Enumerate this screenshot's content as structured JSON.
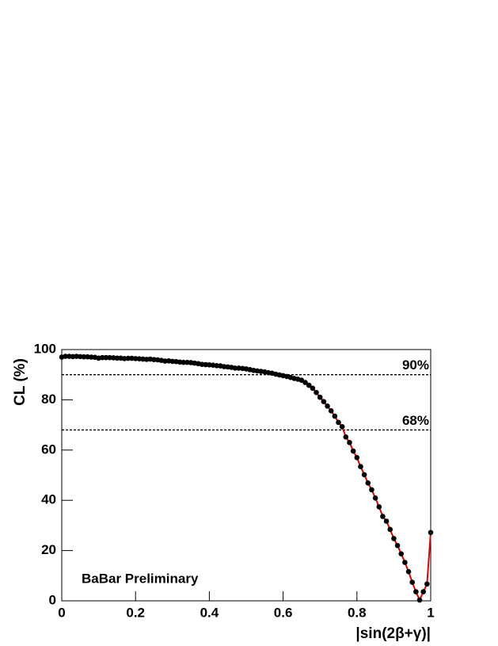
{
  "chart_data": {
    "type": "scatter",
    "x_label": "|sin(2β+γ)|",
    "y_label": "CL (%)",
    "annotation": "BaBar Preliminary",
    "color": "#000000",
    "line": true,
    "line_color": "#e00000",
    "x": [
      0,
      0.01,
      0.02,
      0.03,
      0.04,
      0.05,
      0.06,
      0.07,
      0.08,
      0.09,
      0.1,
      0.11,
      0.12,
      0.13,
      0.14,
      0.15,
      0.16,
      0.17,
      0.18,
      0.19,
      0.2,
      0.21,
      0.22,
      0.23,
      0.24,
      0.25,
      0.26,
      0.27,
      0.28,
      0.29,
      0.3,
      0.31,
      0.32,
      0.33,
      0.34,
      0.35,
      0.36,
      0.37,
      0.38,
      0.39,
      0.4,
      0.41,
      0.42,
      0.43,
      0.44,
      0.45,
      0.46,
      0.47,
      0.48,
      0.49,
      0.5,
      0.51,
      0.52,
      0.53,
      0.54,
      0.55,
      0.56,
      0.57,
      0.58,
      0.59,
      0.6,
      0.61,
      0.62,
      0.63,
      0.64,
      0.65,
      0.66,
      0.67,
      0.68,
      0.69,
      0.7,
      0.71,
      0.72,
      0.73,
      0.74,
      0.75,
      0.76,
      0.77,
      0.78,
      0.79,
      0.8,
      0.81,
      0.82,
      0.83,
      0.84,
      0.85,
      0.86,
      0.87,
      0.88,
      0.89,
      0.9,
      0.91,
      0.92,
      0.93,
      0.94,
      0.95,
      0.96,
      0.97,
      0.98,
      0.99,
      1
    ],
    "values": [
      97.0,
      97.3,
      97.3,
      97.2,
      97.3,
      97.2,
      97.1,
      97.1,
      97.0,
      96.9,
      96.6,
      96.8,
      96.8,
      96.8,
      96.7,
      96.6,
      96.6,
      96.4,
      96.5,
      96.5,
      96.4,
      96.3,
      96.2,
      96.1,
      96.2,
      96.0,
      95.9,
      95.7,
      95.4,
      95.5,
      95.3,
      95.2,
      95.0,
      94.9,
      94.9,
      94.8,
      94.6,
      94.4,
      94.1,
      94.0,
      93.9,
      93.8,
      93.6,
      93.5,
      93.2,
      93.1,
      92.9,
      92.6,
      92.6,
      92.5,
      92.3,
      92.0,
      91.7,
      91.5,
      91.3,
      91.1,
      90.8,
      90.6,
      90.2,
      89.9,
      89.6,
      89.3,
      88.9,
      88.5,
      88.2,
      87.8,
      86.9,
      85.8,
      84.6,
      82.9,
      81.0,
      79.3,
      77.5,
      75.6,
      73.5,
      71.0,
      69.3,
      65.2,
      63.0,
      59.6,
      57.0,
      53.4,
      50.2,
      46.9,
      44.2,
      40.9,
      37.4,
      33.6,
      31.7,
      28.4,
      24.8,
      22.0,
      18.7,
      15.3,
      11.6,
      7.4,
      3.6,
      0.3,
      3.6,
      6.7,
      27.2
    ],
    "xlim": [
      0,
      1
    ],
    "ylim": [
      0,
      100
    ],
    "xticks": [
      0,
      0.2,
      0.4,
      0.6,
      0.8,
      1
    ],
    "yticks": [
      0,
      20,
      40,
      60,
      80,
      100
    ],
    "hlines": [
      {
        "value": 90,
        "label": "90%"
      },
      {
        "value": 68,
        "label": "68%"
      }
    ]
  }
}
